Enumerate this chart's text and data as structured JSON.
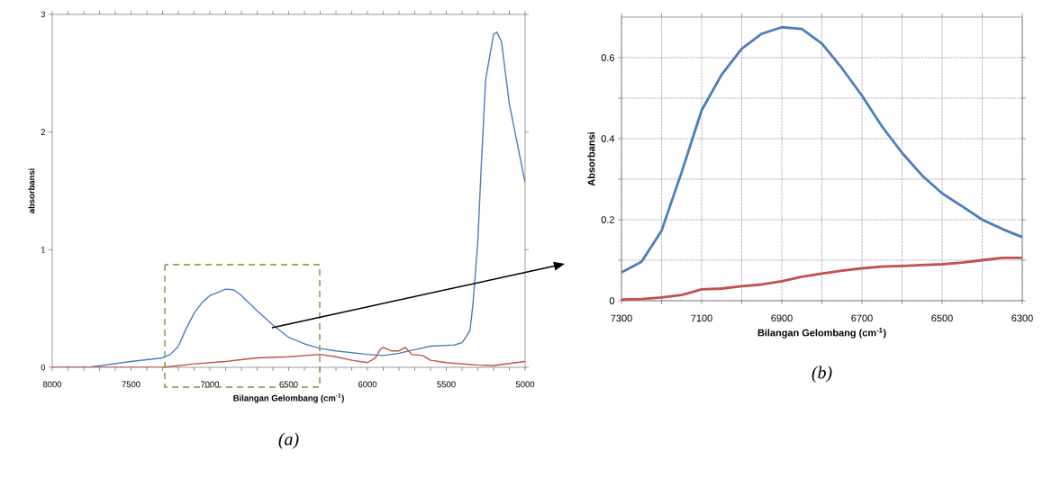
{
  "chart_data": [
    {
      "type": "line",
      "title": "(a)",
      "xlabel": "Bilangan Gelombang (cm$^{-1}$)",
      "ylabel": "absorbansi",
      "xlim": [
        8000,
        5000
      ],
      "ylim": [
        0,
        3
      ],
      "xticks": [
        8000,
        {
          "value": 7900,
          "label": null
        },
        {
          "value": 7800,
          "label": null
        },
        {
          "value": 7700,
          "label": null
        },
        {
          "value": 7600,
          "label": null
        },
        7500,
        {
          "value": 7400,
          "label": null
        },
        {
          "value": 7300,
          "label": null
        },
        {
          "value": 7200,
          "label": null
        },
        {
          "value": 7100,
          "label": null
        },
        7000,
        {
          "value": 6900,
          "label": null
        },
        {
          "value": 6800,
          "label": null
        },
        {
          "value": 6700,
          "label": null
        },
        {
          "value": 6600,
          "label": null
        },
        6500,
        {
          "value": 6400,
          "label": null
        },
        {
          "value": 6300,
          "label": null
        },
        {
          "value": 6200,
          "label": null
        },
        {
          "value": 6100,
          "label": null
        },
        6000,
        {
          "value": 5900,
          "label": null
        },
        {
          "value": 5800,
          "label": null
        },
        {
          "value": 5700,
          "label": null
        },
        {
          "value": 5600,
          "label": null
        },
        5500,
        {
          "value": 5400,
          "label": null
        },
        {
          "value": 5300,
          "label": null
        },
        {
          "value": 5200,
          "label": null
        },
        {
          "value": 5100,
          "label": null
        },
        5000
      ],
      "yticks": [
        0,
        1,
        2,
        3
      ],
      "series": [
        {
          "color": "#4a7ebb",
          "x": [
            8000,
            7750,
            7500,
            7300,
            7250,
            7200,
            7150,
            7100,
            7050,
            7000,
            6900,
            6850,
            6800,
            6700,
            6600,
            6500,
            6400,
            6300,
            6200,
            6000,
            5900,
            5800,
            5700,
            5600,
            5450,
            5400,
            5350,
            5330,
            5300,
            5280,
            5250,
            5200,
            5180,
            5150,
            5100,
            5000
          ],
          "values": [
            0,
            0.005,
            0.05,
            0.08,
            0.11,
            0.18,
            0.33,
            0.46,
            0.55,
            0.61,
            0.665,
            0.66,
            0.61,
            0.48,
            0.36,
            0.255,
            0.2,
            0.16,
            0.14,
            0.11,
            0.1,
            0.12,
            0.15,
            0.18,
            0.19,
            0.21,
            0.31,
            0.55,
            1.07,
            1.66,
            2.45,
            2.83,
            2.85,
            2.77,
            2.24,
            1.57
          ]
        },
        {
          "color": "#c0504d",
          "x": [
            8000,
            7300,
            7100,
            6900,
            6700,
            6500,
            6300,
            6200,
            6100,
            6000,
            5950,
            5920,
            5900,
            5850,
            5800,
            5760,
            5720,
            5650,
            5600,
            5500,
            5300,
            5200,
            5000
          ],
          "values": [
            0,
            0,
            0.03,
            0.05,
            0.08,
            0.09,
            0.11,
            0.09,
            0.06,
            0.04,
            0.08,
            0.15,
            0.17,
            0.14,
            0.14,
            0.17,
            0.11,
            0.1,
            0.06,
            0.04,
            0.02,
            0.015,
            0.05
          ]
        }
      ]
    },
    {
      "type": "line",
      "title": "(b)",
      "xlabel": "Bilangan Gelombang (cm$^{-1}$)",
      "ylabel": "Absorbansi",
      "xlim": [
        7300,
        6300
      ],
      "ylim": [
        0,
        0.7
      ],
      "grid": true,
      "xticks": [
        7300,
        {
          "value": 7200,
          "label": null
        },
        7100,
        {
          "value": 7000,
          "label": null
        },
        6900,
        {
          "value": 6800,
          "label": null
        },
        6700,
        {
          "value": 6600,
          "label": null
        },
        6500,
        {
          "value": 6400,
          "label": null
        },
        6300
      ],
      "yticks": [
        0,
        {
          "value": 0.1,
          "label": null
        },
        0.2,
        {
          "value": 0.3,
          "label": null
        },
        0.4,
        {
          "value": 0.5,
          "label": null
        },
        0.6
      ],
      "series": [
        {
          "color": "#4a7ebb",
          "x": [
            7300,
            7250,
            7200,
            7150,
            7100,
            7050,
            7000,
            6950,
            6900,
            6850,
            6800,
            6750,
            6700,
            6650,
            6600,
            6550,
            6500,
            6450,
            6400,
            6350,
            6300
          ],
          "values": [
            0.07,
            0.096,
            0.173,
            0.317,
            0.47,
            0.558,
            0.622,
            0.659,
            0.675,
            0.671,
            0.635,
            0.574,
            0.506,
            0.43,
            0.365,
            0.309,
            0.265,
            0.233,
            0.2,
            0.177,
            0.157
          ]
        },
        {
          "color": "#c0504d",
          "x": [
            7300,
            7250,
            7200,
            7150,
            7100,
            7050,
            7000,
            6950,
            6900,
            6850,
            6800,
            6750,
            6700,
            6650,
            6600,
            6550,
            6500,
            6450,
            6400,
            6350,
            6300
          ],
          "values": [
            0.003,
            0.004,
            0.008,
            0.014,
            0.028,
            0.03,
            0.036,
            0.04,
            0.048,
            0.059,
            0.067,
            0.074,
            0.08,
            0.084,
            0.086,
            0.088,
            0.09,
            0.094,
            0.1,
            0.106,
            0.106
          ]
        }
      ]
    }
  ]
}
